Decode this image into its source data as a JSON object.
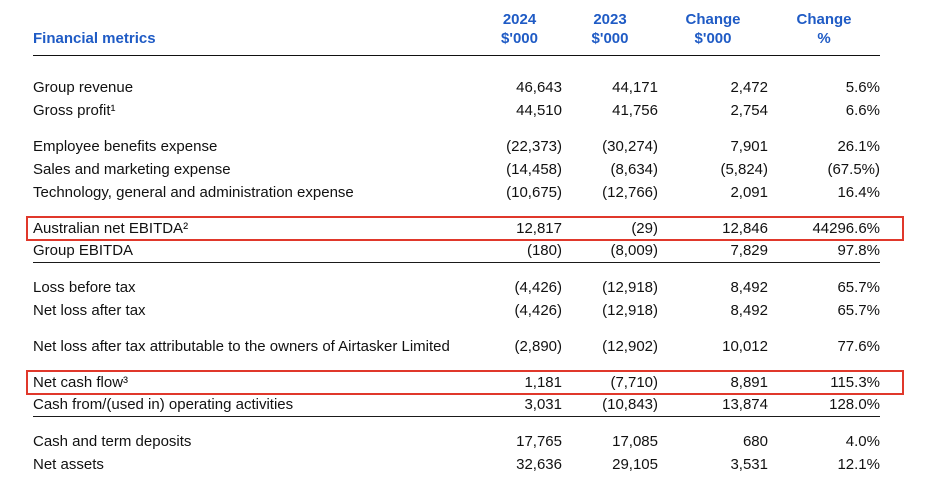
{
  "title": "Financial metrics",
  "colors": {
    "heading_blue": "#1f5bc5",
    "highlight_red": "#e0382b",
    "text": "#111111",
    "rule": "#1a1a1a"
  },
  "header": {
    "label": "Financial metrics",
    "columns": [
      {
        "line1": "2024",
        "line2": "$'000"
      },
      {
        "line1": "2023",
        "line2": "$'000"
      },
      {
        "line1": "Change",
        "line2": "$'000"
      },
      {
        "line1": "Change",
        "line2": "%"
      }
    ]
  },
  "rows": [
    {
      "label": "Group revenue",
      "values": [
        "46,643",
        "44,171",
        "2,472",
        "5.6%"
      ],
      "highlighted": false
    },
    {
      "label": "Gross profit¹",
      "values": [
        "44,510",
        "41,756",
        "2,754",
        "6.6%"
      ],
      "highlighted": false
    },
    {
      "label": "Employee benefits expense",
      "values": [
        "(22,373)",
        "(30,274)",
        "7,901",
        "26.1%"
      ],
      "highlighted": false
    },
    {
      "label": "Sales and marketing expense",
      "values": [
        "(14,458)",
        "(8,634)",
        "(5,824)",
        "(67.5%)"
      ],
      "highlighted": false
    },
    {
      "label": "Technology, general and administration expense",
      "values": [
        "(10,675)",
        "(12,766)",
        "2,091",
        "16.4%"
      ],
      "highlighted": false
    },
    {
      "label": "Australian net EBITDA²",
      "values": [
        "12,817",
        "(29)",
        "12,846",
        "44296.6%"
      ],
      "highlighted": true
    },
    {
      "label": "Group EBITDA",
      "values": [
        "(180)",
        "(8,009)",
        "7,829",
        "97.8%"
      ],
      "highlighted": false
    },
    {
      "label": "Loss before tax",
      "values": [
        "(4,426)",
        "(12,918)",
        "8,492",
        "65.7%"
      ],
      "highlighted": false
    },
    {
      "label": "Net loss after tax",
      "values": [
        "(4,426)",
        "(12,918)",
        "8,492",
        "65.7%"
      ],
      "highlighted": false
    },
    {
      "label": "Net loss after tax attributable to the owners of Airtasker Limited",
      "values": [
        "(2,890)",
        "(12,902)",
        "10,012",
        "77.6%"
      ],
      "highlighted": false
    },
    {
      "label": "Net cash flow³",
      "values": [
        "1,181",
        "(7,710)",
        "8,891",
        "115.3%"
      ],
      "highlighted": true
    },
    {
      "label": "Cash from/(used in) operating activities",
      "values": [
        "3,031",
        "(10,843)",
        "13,874",
        "128.0%"
      ],
      "highlighted": false
    },
    {
      "label": "Cash and term deposits",
      "values": [
        "17,765",
        "17,085",
        "680",
        "4.0%"
      ],
      "highlighted": false
    },
    {
      "label": "Net assets",
      "values": [
        "32,636",
        "29,105",
        "3,531",
        "12.1%"
      ],
      "highlighted": false
    }
  ]
}
